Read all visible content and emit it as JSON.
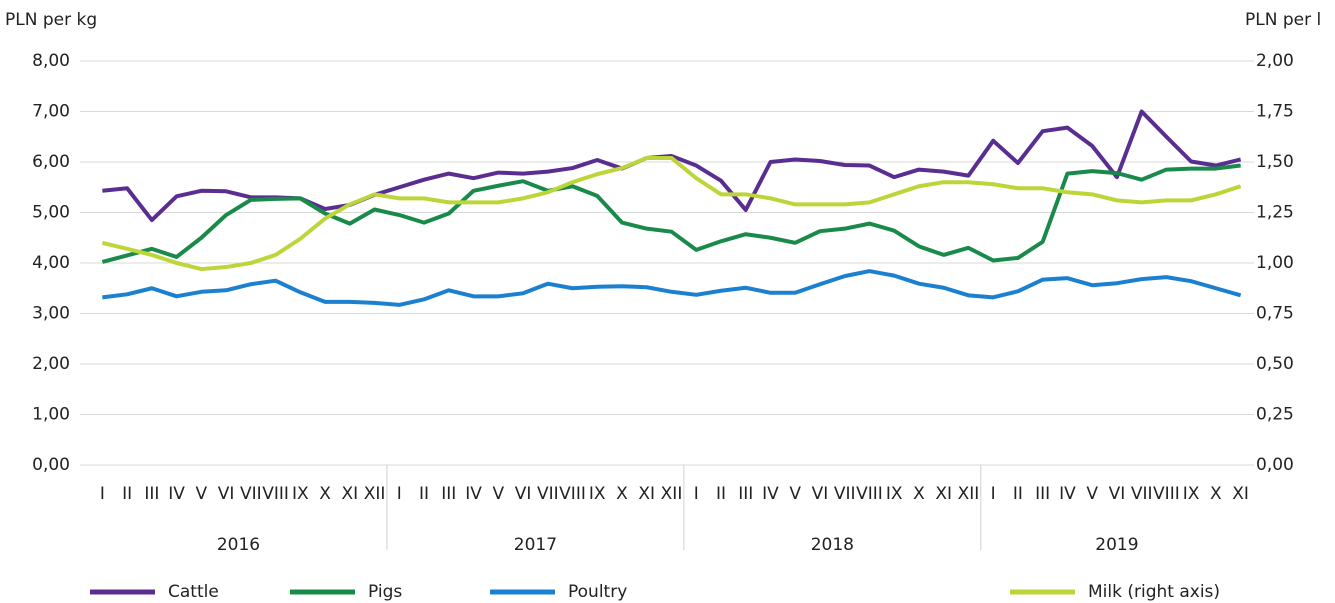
{
  "chart_data": {
    "type": "line",
    "y_label": "PLN per kg",
    "y2_label": "PLN per l",
    "categories": [
      "I",
      "II",
      "III",
      "IV",
      "V",
      "VI",
      "VII",
      "VIII",
      "IX",
      "X",
      "XI",
      "XII",
      "I",
      "II",
      "III",
      "IV",
      "V",
      "VI",
      "VII",
      "VIII",
      "IX",
      "X",
      "XI",
      "XII",
      "I",
      "II",
      "III",
      "IV",
      "V",
      "VI",
      "VII",
      "VIII",
      "IX",
      "X",
      "XI",
      "XII",
      "I",
      "II",
      "III",
      "IV",
      "V",
      "VI",
      "VII",
      "VIII",
      "IX",
      "X",
      "XI"
    ],
    "years": [
      "2016",
      "2017",
      "2018",
      "2019"
    ],
    "ylim": [
      0,
      8
    ],
    "yticks": [
      {
        "value": 0,
        "label": "0,00"
      },
      {
        "value": 1,
        "label": "1,00"
      },
      {
        "value": 2,
        "label": "2,00"
      },
      {
        "value": 3,
        "label": "3,00"
      },
      {
        "value": 4,
        "label": "4,00"
      },
      {
        "value": 5,
        "label": "5,00"
      },
      {
        "value": 6,
        "label": "6,00"
      },
      {
        "value": 7,
        "label": "7,00"
      },
      {
        "value": 8,
        "label": "8,00"
      }
    ],
    "y2lim": [
      0,
      2
    ],
    "y2ticks": [
      {
        "value": 0,
        "label": "0,00"
      },
      {
        "value": 0.25,
        "label": "0,25"
      },
      {
        "value": 0.5,
        "label": "0,50"
      },
      {
        "value": 0.75,
        "label": "0,75"
      },
      {
        "value": 1,
        "label": "1,00"
      },
      {
        "value": 1.25,
        "label": "1,25"
      },
      {
        "value": 1.5,
        "label": "1,50"
      },
      {
        "value": 1.75,
        "label": "1,75"
      },
      {
        "value": 2,
        "label": "2,00"
      }
    ],
    "grid": true,
    "series": [
      {
        "name": "Cattle",
        "color": "#5a2d91",
        "values": [
          5.43,
          5.48,
          4.85,
          5.32,
          5.43,
          5.42,
          5.3,
          5.3,
          5.28,
          5.07,
          5.15,
          5.35,
          5.5,
          5.65,
          5.77,
          5.68,
          5.79,
          5.77,
          5.81,
          5.88,
          6.04,
          5.87,
          6.08,
          6.12,
          5.93,
          5.63,
          5.05,
          6.0,
          6.05,
          6.02,
          5.94,
          5.93,
          5.7,
          5.85,
          5.81,
          5.73,
          6.42,
          5.98,
          6.61,
          6.68,
          6.32,
          5.7,
          7.0,
          6.5,
          6.01,
          5.93,
          6.05
        ]
      },
      {
        "name": "Pigs",
        "color": "#1a8a4a",
        "values": [
          4.02,
          4.15,
          4.28,
          4.12,
          4.5,
          4.95,
          5.25,
          5.27,
          5.28,
          4.98,
          4.78,
          5.06,
          4.95,
          4.8,
          4.98,
          5.43,
          5.53,
          5.62,
          5.43,
          5.52,
          5.33,
          4.8,
          4.68,
          4.62,
          4.26,
          4.43,
          4.57,
          4.5,
          4.4,
          4.63,
          4.68,
          4.78,
          4.64,
          4.33,
          4.16,
          4.3,
          4.05,
          4.1,
          4.42,
          5.77,
          5.82,
          5.78,
          5.65,
          5.85,
          5.87,
          5.87,
          5.93
        ]
      },
      {
        "name": "Poultry",
        "color": "#1b80d0",
        "values": [
          3.32,
          3.38,
          3.5,
          3.34,
          3.43,
          3.46,
          3.58,
          3.65,
          3.42,
          3.23,
          3.23,
          3.21,
          3.17,
          3.28,
          3.46,
          3.34,
          3.34,
          3.4,
          3.59,
          3.5,
          3.53,
          3.54,
          3.52,
          3.43,
          3.37,
          3.45,
          3.51,
          3.41,
          3.41,
          3.58,
          3.74,
          3.84,
          3.75,
          3.59,
          3.51,
          3.36,
          3.32,
          3.44,
          3.67,
          3.7,
          3.56,
          3.6,
          3.68,
          3.72,
          3.64,
          3.5,
          3.36
        ]
      },
      {
        "name": "Milk (right axis)",
        "color": "#bcd63a",
        "axis": "y2",
        "values": [
          1.1,
          1.07,
          1.04,
          1.0,
          0.97,
          0.98,
          1.0,
          1.04,
          1.12,
          1.22,
          1.29,
          1.34,
          1.32,
          1.32,
          1.3,
          1.3,
          1.3,
          1.32,
          1.35,
          1.4,
          1.44,
          1.47,
          1.52,
          1.52,
          1.42,
          1.34,
          1.34,
          1.32,
          1.29,
          1.29,
          1.29,
          1.3,
          1.34,
          1.38,
          1.4,
          1.4,
          1.39,
          1.37,
          1.37,
          1.35,
          1.34,
          1.31,
          1.3,
          1.31,
          1.31,
          1.34,
          1.38
        ]
      }
    ]
  }
}
